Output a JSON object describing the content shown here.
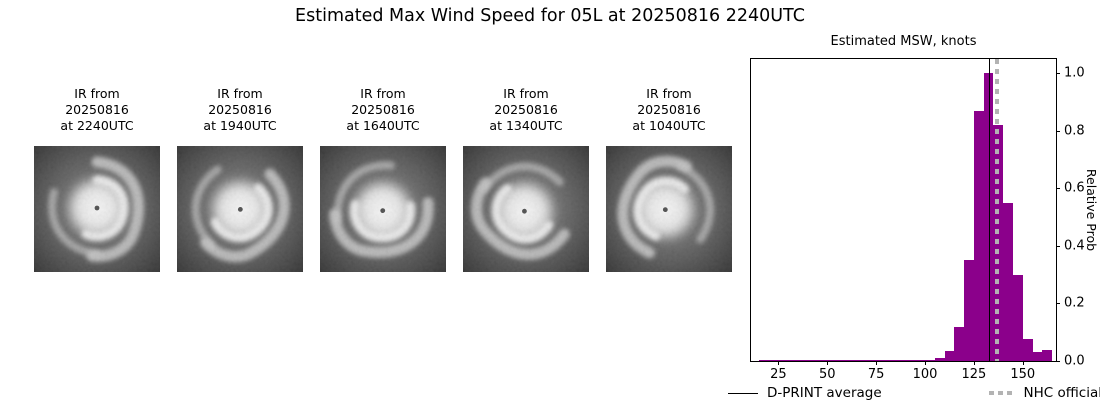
{
  "title": "Estimated Max Wind Speed for 05L at 20250816 2240UTC",
  "ir_images": [
    {
      "caption_lines": [
        "IR from",
        "20250816",
        "at 2240UTC"
      ]
    },
    {
      "caption_lines": [
        "IR from",
        "20250816",
        "at 1940UTC"
      ]
    },
    {
      "caption_lines": [
        "IR from",
        "20250816",
        "at 1640UTC"
      ]
    },
    {
      "caption_lines": [
        "IR from",
        "20250816",
        "at 1340UTC"
      ]
    },
    {
      "caption_lines": [
        "IR from",
        "20250816",
        "at 1040UTC"
      ]
    }
  ],
  "chart_data": {
    "type": "bar",
    "title": "Estimated MSW, knots",
    "ylabel": "Relative Prob",
    "xlim": [
      11,
      167
    ],
    "ylim": [
      0,
      1.05
    ],
    "x_ticks": [
      25,
      50,
      75,
      100,
      125,
      150
    ],
    "y_ticks": [
      0.0,
      0.2,
      0.4,
      0.6,
      0.8,
      1.0
    ],
    "bin_width": 5,
    "bins": [
      {
        "x": 15,
        "p": 0.004
      },
      {
        "x": 20,
        "p": 0.004
      },
      {
        "x": 25,
        "p": 0.004
      },
      {
        "x": 30,
        "p": 0.004
      },
      {
        "x": 35,
        "p": 0.004
      },
      {
        "x": 40,
        "p": 0.004
      },
      {
        "x": 45,
        "p": 0.004
      },
      {
        "x": 50,
        "p": 0.004
      },
      {
        "x": 55,
        "p": 0.004
      },
      {
        "x": 60,
        "p": 0.004
      },
      {
        "x": 65,
        "p": 0.004
      },
      {
        "x": 70,
        "p": 0.004
      },
      {
        "x": 75,
        "p": 0.004
      },
      {
        "x": 80,
        "p": 0.004
      },
      {
        "x": 85,
        "p": 0.004
      },
      {
        "x": 90,
        "p": 0.004
      },
      {
        "x": 95,
        "p": 0.004
      },
      {
        "x": 100,
        "p": 0.004
      },
      {
        "x": 105,
        "p": 0.012
      },
      {
        "x": 110,
        "p": 0.035
      },
      {
        "x": 115,
        "p": 0.12
      },
      {
        "x": 120,
        "p": 0.35
      },
      {
        "x": 125,
        "p": 0.87
      },
      {
        "x": 130,
        "p": 1.0
      },
      {
        "x": 135,
        "p": 0.82
      },
      {
        "x": 140,
        "p": 0.55
      },
      {
        "x": 145,
        "p": 0.3
      },
      {
        "x": 150,
        "p": 0.075
      },
      {
        "x": 155,
        "p": 0.03
      },
      {
        "x": 160,
        "p": 0.04
      }
    ],
    "bar_color": "#8B008B",
    "dprint_average": 133,
    "nhc_official": 137,
    "average_line_color": "#000000",
    "nhc_line_color": "#b3b3b3",
    "legend": [
      {
        "label": "D-PRINT average",
        "style": "solid-black"
      },
      {
        "label": "NHC official",
        "style": "dotted-gray"
      }
    ]
  }
}
